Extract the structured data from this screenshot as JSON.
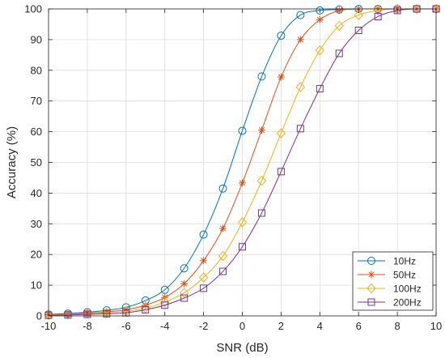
{
  "chart_data": {
    "type": "line",
    "xlabel": "SNR (dB)",
    "ylabel": "Accuracy (%)",
    "xlim": [
      -10,
      10
    ],
    "ylim": [
      0,
      100
    ],
    "xticks": [
      -10,
      -8,
      -6,
      -4,
      -2,
      0,
      2,
      4,
      6,
      8,
      10
    ],
    "yticks": [
      0,
      10,
      20,
      30,
      40,
      50,
      60,
      70,
      80,
      90,
      100
    ],
    "grid": true,
    "legend_position": "bottom-right",
    "x": [
      -10,
      -9,
      -8,
      -7,
      -6,
      -5,
      -4,
      -3,
      -2,
      -1,
      0,
      1,
      2,
      3,
      4,
      5,
      6,
      7,
      8,
      9,
      10
    ],
    "series": [
      {
        "name": "10Hz",
        "color": "#0072BD",
        "marker": "circle",
        "values": [
          0.5,
          0.8,
          1.2,
          1.8,
          2.8,
          5.0,
          8.5,
          15.5,
          26.5,
          41.5,
          60.3,
          78.0,
          91.3,
          98.0,
          99.5,
          99.8,
          100,
          100,
          100,
          100,
          100
        ]
      },
      {
        "name": "50Hz",
        "color": "#D95319",
        "marker": "asterisk",
        "values": [
          0.4,
          0.6,
          0.9,
          1.3,
          2.0,
          3.5,
          6.0,
          10.5,
          18.0,
          28.5,
          43.3,
          60.5,
          77.8,
          90.0,
          96.5,
          99.5,
          100,
          100,
          100,
          100,
          100
        ]
      },
      {
        "name": "100Hz",
        "color": "#EDB120",
        "marker": "diamond",
        "values": [
          0.3,
          0.5,
          0.7,
          1.0,
          1.5,
          2.5,
          4.5,
          7.5,
          12.5,
          19.5,
          30.5,
          44.0,
          59.5,
          74.5,
          86.5,
          94.5,
          98.0,
          99.5,
          100,
          100,
          100
        ]
      },
      {
        "name": "200Hz",
        "color": "#7E2F8E",
        "marker": "square",
        "values": [
          0.2,
          0.3,
          0.5,
          0.7,
          1.0,
          2.0,
          3.5,
          5.8,
          9.0,
          14.5,
          22.5,
          33.5,
          47.0,
          61.0,
          74.0,
          85.5,
          93.0,
          97.5,
          99.5,
          100,
          100
        ]
      }
    ]
  }
}
